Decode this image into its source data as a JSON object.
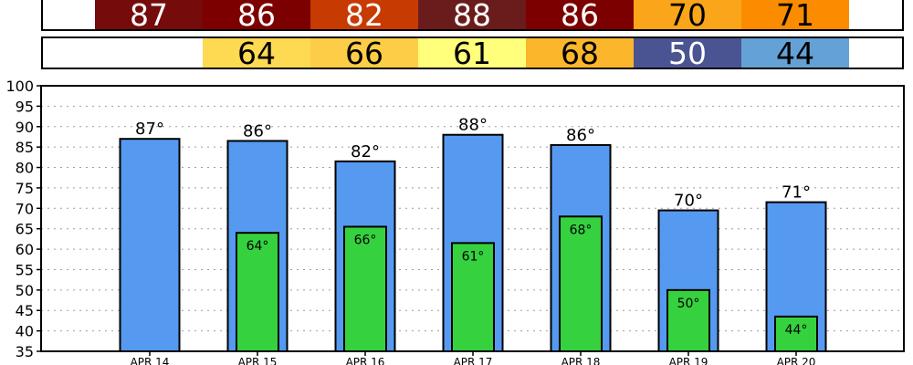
{
  "chart_data": {
    "type": "bar",
    "categories": [
      "APR 14",
      "APR 15",
      "APR 16",
      "APR 17",
      "APR 18",
      "APR 19",
      "APR 20"
    ],
    "series": [
      {
        "values": [
          87,
          86.5,
          81.5,
          88,
          85.5,
          69.5,
          71.5
        ],
        "color": "#559af0"
      },
      {
        "values": [
          null,
          64,
          65.5,
          61.5,
          68,
          50,
          43.5
        ],
        "color": "#36d13f"
      }
    ],
    "data_labels": {
      "high": [
        "87°",
        "86°",
        "82°",
        "88°",
        "86°",
        "70°",
        "71°"
      ],
      "low": [
        "",
        "64°",
        "66°",
        "61°",
        "68°",
        "50°",
        "44°"
      ]
    },
    "ylim": [
      35,
      100
    ],
    "yticks": [
      35,
      40,
      45,
      50,
      55,
      60,
      65,
      70,
      75,
      80,
      85,
      90,
      95,
      100
    ],
    "grid": true,
    "title": "",
    "xlabel": "",
    "ylabel": ""
  },
  "high_strip": [
    {
      "value": "87",
      "bg": "#760b0b",
      "fg": "#ffffff"
    },
    {
      "value": "86",
      "bg": "#7d0000",
      "fg": "#ffffff"
    },
    {
      "value": "82",
      "bg": "#c73a02",
      "fg": "#ffffff"
    },
    {
      "value": "88",
      "bg": "#6a1b1b",
      "fg": "#ffffff"
    },
    {
      "value": "86",
      "bg": "#7d0000",
      "fg": "#ffffff"
    },
    {
      "value": "70",
      "bg": "#fba51a",
      "fg": "#000000"
    },
    {
      "value": "71",
      "bg": "#fb8c00",
      "fg": "#000000"
    }
  ],
  "low_strip": [
    {
      "value": "",
      "bg": "#ffffff",
      "fg": "#000000"
    },
    {
      "value": "64",
      "bg": "#fed952",
      "fg": "#000000"
    },
    {
      "value": "66",
      "bg": "#fdcd47",
      "fg": "#000000"
    },
    {
      "value": "61",
      "bg": "#ffff7b",
      "fg": "#000000"
    },
    {
      "value": "68",
      "bg": "#fcb62b",
      "fg": "#000000"
    },
    {
      "value": "50",
      "bg": "#4b5493",
      "fg": "#ffffff"
    },
    {
      "value": "44",
      "bg": "#63a1d6",
      "fg": "#000000"
    }
  ]
}
